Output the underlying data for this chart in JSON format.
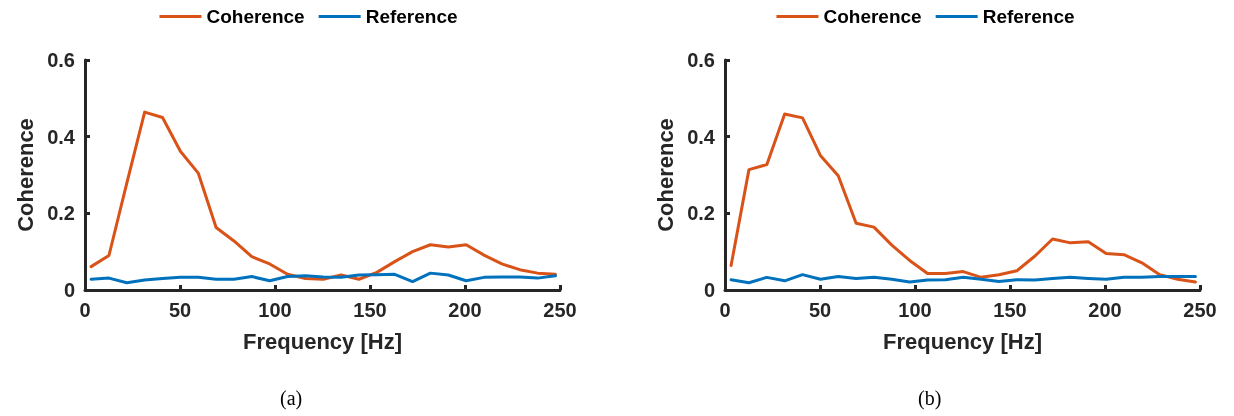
{
  "chart_data": [
    {
      "type": "line",
      "xlabel": "Frequency [Hz]",
      "ylabel": "Coherence",
      "annotations": [
        "(a)"
      ],
      "x": [
        3.2,
        12.6,
        22,
        31.4,
        40.8,
        50.2,
        59.6,
        69,
        78.4,
        87.8,
        97.2,
        106.6,
        116,
        125.4,
        134.8,
        144.2,
        153.6,
        163,
        172.4,
        181.8,
        191.2,
        200.6,
        210,
        219.4,
        228.8,
        238.2,
        247.6
      ],
      "series": [
        {
          "name": "Coherence",
          "color": "#d95319",
          "values": [
            0.061,
            0.09,
            0.279,
            0.464,
            0.45,
            0.362,
            0.305,
            0.163,
            0.128,
            0.087,
            0.068,
            0.041,
            0.03,
            0.028,
            0.039,
            0.028,
            0.046,
            0.074,
            0.1,
            0.118,
            0.112,
            0.118,
            0.091,
            0.068,
            0.053,
            0.044,
            0.041
          ]
        },
        {
          "name": "Reference",
          "color": "#0072bd",
          "values": [
            0.028,
            0.031,
            0.019,
            0.026,
            0.03,
            0.033,
            0.033,
            0.028,
            0.028,
            0.035,
            0.024,
            0.035,
            0.037,
            0.034,
            0.033,
            0.039,
            0.04,
            0.041,
            0.022,
            0.044,
            0.039,
            0.024,
            0.033,
            0.034,
            0.034,
            0.031,
            0.037
          ]
        }
      ],
      "xlim": [
        0,
        250
      ],
      "xticks": [
        0,
        50,
        100,
        150,
        200,
        250
      ],
      "ylim": [
        0,
        0.6
      ],
      "yticks": [
        0,
        0.2,
        0.4,
        0.6
      ],
      "grid": false,
      "legend": "top",
      "marker": "none",
      "line_style": "solid"
    },
    {
      "type": "line",
      "xlabel": "Frequency [Hz]",
      "ylabel": "Coherence",
      "annotations": [
        "(b)"
      ],
      "x": [
        3.2,
        12.6,
        22,
        31.4,
        40.8,
        50.2,
        59.6,
        69,
        78.4,
        87.8,
        97.2,
        106.6,
        116,
        125.4,
        134.8,
        144.2,
        153.6,
        163,
        172.4,
        181.8,
        191.2,
        200.6,
        210,
        219.4,
        228.8,
        238.2,
        247.6
      ],
      "series": [
        {
          "name": "Coherence",
          "color": "#d95319",
          "values": [
            0.064,
            0.314,
            0.327,
            0.459,
            0.449,
            0.351,
            0.298,
            0.174,
            0.164,
            0.117,
            0.077,
            0.043,
            0.043,
            0.048,
            0.033,
            0.04,
            0.05,
            0.088,
            0.133,
            0.123,
            0.126,
            0.095,
            0.092,
            0.071,
            0.04,
            0.028,
            0.021
          ]
        },
        {
          "name": "Reference",
          "color": "#0072bd",
          "values": [
            0.027,
            0.019,
            0.033,
            0.024,
            0.04,
            0.028,
            0.035,
            0.03,
            0.033,
            0.028,
            0.021,
            0.026,
            0.027,
            0.033,
            0.028,
            0.022,
            0.027,
            0.026,
            0.03,
            0.033,
            0.03,
            0.028,
            0.033,
            0.033,
            0.035,
            0.035,
            0.035
          ]
        }
      ],
      "xlim": [
        0,
        250
      ],
      "xticks": [
        0,
        50,
        100,
        150,
        200,
        250
      ],
      "ylim": [
        0,
        0.6
      ],
      "yticks": [
        0,
        0.2,
        0.4,
        0.6
      ],
      "grid": false,
      "legend": "top",
      "marker": "none",
      "line_style": "solid"
    }
  ]
}
